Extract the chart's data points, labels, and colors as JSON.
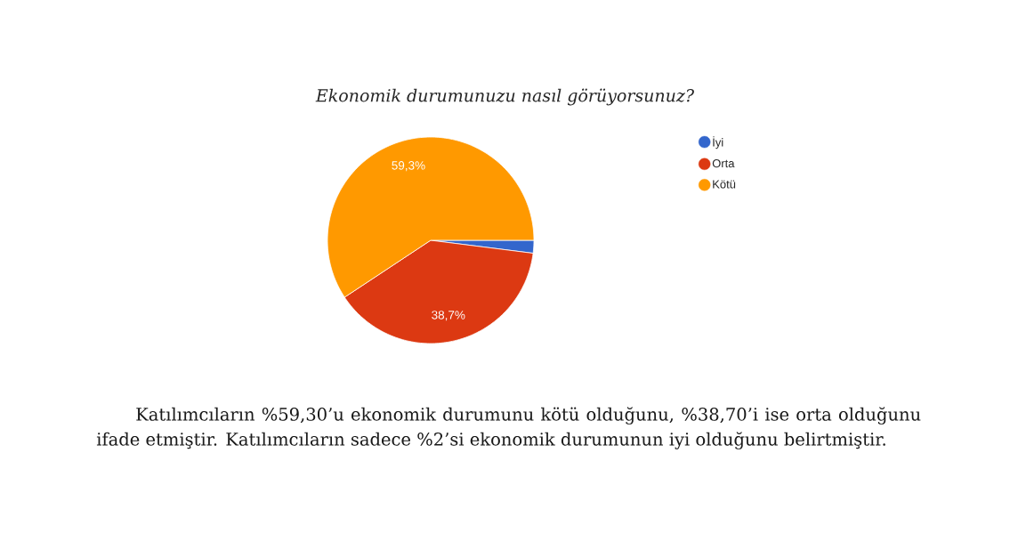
{
  "chart_data": {
    "type": "pie",
    "title": "Ekonomik durumunuzu nasıl görüyorsunuz?",
    "categories": [
      "İyi",
      "Orta",
      "Kötü"
    ],
    "values": [
      2,
      38.7,
      59.3
    ],
    "colors": [
      "#3366cc",
      "#dc3912",
      "#ff9900"
    ],
    "value_labels": [
      null,
      "38,7%",
      "59,3%"
    ],
    "legend": "top right",
    "annotations": [
      "Katılımcıların %59,30’u ekonomik durumunu kötü olduğunu, %38,70’i ise orta olduğunu ifade etmiştir. Katılımcıların sadece %2’si ekonomik durumunun iyi olduğunu belirtmiştir."
    ]
  }
}
